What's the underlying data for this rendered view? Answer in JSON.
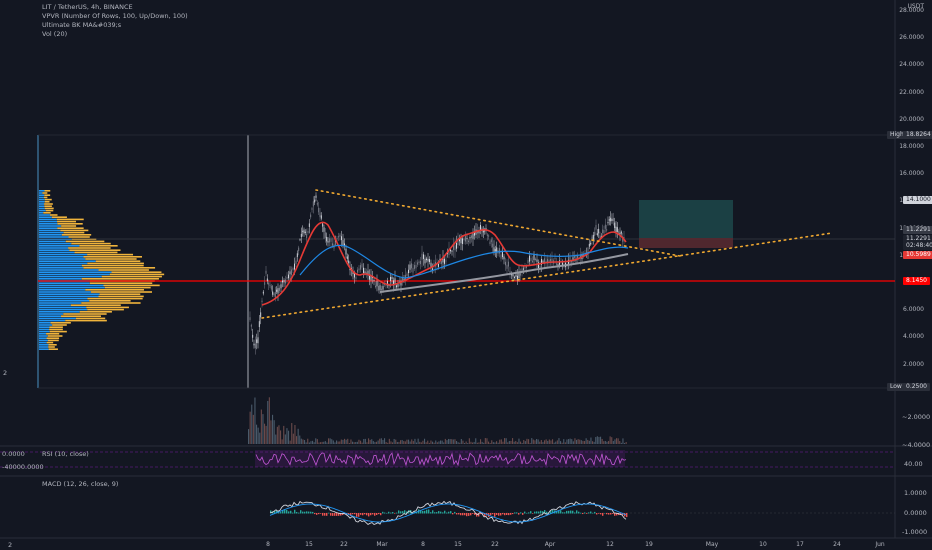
{
  "header": {
    "symbol_line": "LIT / TetherUS, 4h, BINANCE",
    "indicator_1": "VPVR (Number Of Rows, 100, Up/Down, 100)",
    "indicator_2": "Ultimate BK MA&#039;s",
    "indicator_3": "Vol (20)"
  },
  "price_axis": {
    "currency": "USDT",
    "labels": [
      "28.0000",
      "26.0000",
      "24.0000",
      "22.0000",
      "20.0000",
      "18.0000",
      "16.0000",
      "14.0000",
      "12.0000",
      "10.0000",
      "8.0000",
      "6.0000",
      "4.0000",
      "2.0000"
    ],
    "volume_labels": [
      "~2.0000",
      "~4.0000"
    ]
  },
  "tags": {
    "high_label": "High",
    "high_value": "18.8264",
    "low_label": "Low",
    "low_value": "0.2500",
    "target": "14.1000",
    "current_price": "11.2291",
    "current_price_b": "11.2291",
    "countdown": "02:48:40",
    "stop": "10.5989",
    "support": "8.1450"
  },
  "rsi": {
    "label": "RSI (10, close)",
    "left_value_top": "0.0000",
    "left_value_bottom": "-40000.0000",
    "right_value": "40.00"
  },
  "macd": {
    "label": "MACD (12, 26, close, 9)",
    "right_values": [
      "1.0000",
      "0.0000",
      "-1.0000"
    ]
  },
  "time_axis": {
    "labels": [
      "8",
      "15",
      "22",
      "Mar",
      "8",
      "15",
      "22",
      "Apr",
      "12",
      "19",
      "May",
      "10",
      "17",
      "24",
      "Jun"
    ]
  },
  "left_marker": "2",
  "colors": {
    "background": "#131722",
    "up": "#26a69a",
    "down": "#ef5350",
    "support_line": "#ff0000",
    "trend_dots": "#f0a830",
    "vpvr_up": "#2196f3",
    "vpvr_down": "#f0b43c",
    "rsi": "#9c27b0",
    "ma_red": "#e53935",
    "ma_blue": "#1e88e5",
    "ma_gray": "#9598a1"
  }
}
